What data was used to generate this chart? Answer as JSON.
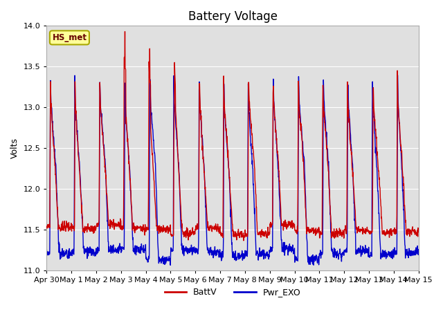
{
  "title": "Battery Voltage",
  "ylabel": "Volts",
  "ylim": [
    11.0,
    14.0
  ],
  "yticks": [
    11.0,
    11.5,
    12.0,
    12.5,
    13.0,
    13.5,
    14.0
  ],
  "xtick_labels": [
    "Apr 30",
    "May 1",
    "May 2",
    "May 3",
    "May 4",
    "May 5",
    "May 6",
    "May 7",
    "May 8",
    "May 9",
    "May 10",
    "May 11",
    "May 12",
    "May 13",
    "May 14",
    "May 15"
  ],
  "batt_color": "#cc0000",
  "pwr_color": "#0000cc",
  "background_color": "#e0e0e0",
  "legend_labels": [
    "BattV",
    "Pwr_EXO"
  ],
  "station_label": "HS_met",
  "n_days": 15,
  "pts_per_day": 96,
  "grid_color": "#ffffff",
  "title_fontsize": 12,
  "label_fontsize": 9,
  "tick_fontsize": 8
}
